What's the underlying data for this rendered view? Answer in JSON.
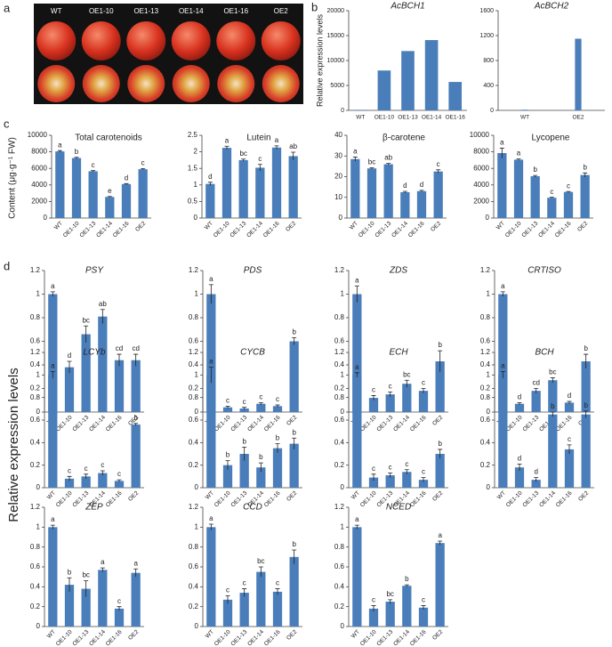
{
  "panels": [
    "a",
    "b",
    "c",
    "d"
  ],
  "photo_labels": [
    "WT",
    "OE1-10",
    "OE1-13",
    "OE1-14",
    "OE1-16",
    "OE2"
  ],
  "ylabels": {
    "b": "Relative expression levels",
    "c": "Content (μg·g⁻¹ FW)",
    "d": "Relative expression levels"
  },
  "chart_data": [
    {
      "type": "bar",
      "title": "AcBCH1",
      "categories": [
        "WT",
        "OE1-10",
        "OE1-13",
        "OE1-14",
        "OE1-16"
      ],
      "values": [
        100,
        8000,
        11900,
        14100,
        5700
      ],
      "ylim": [
        0,
        20000
      ],
      "yticks": [
        0,
        5000,
        10000,
        15000,
        20000
      ],
      "color": "#4a7ebb"
    },
    {
      "type": "bar",
      "title": "AcBCH2",
      "categories": [
        "WT",
        "OE2"
      ],
      "values": [
        10,
        1150
      ],
      "ylim": [
        0,
        1600
      ],
      "yticks": [
        0,
        400,
        800,
        1200,
        1600
      ],
      "color": "#4a7ebb"
    },
    {
      "type": "bar",
      "title": "Total carotenoids",
      "categories": [
        "WT",
        "OE1-10",
        "OE1-13",
        "OE1-14",
        "OE1-16",
        "OE2"
      ],
      "values": [
        8050,
        7250,
        5650,
        2550,
        4100,
        5900
      ],
      "errors": [
        100,
        80,
        80,
        60,
        60,
        80
      ],
      "annotations": [
        "a",
        "b",
        "c",
        "e",
        "d",
        "c"
      ],
      "ylim": [
        0,
        10000
      ],
      "yticks": [
        0,
        2000,
        4000,
        6000,
        8000,
        10000
      ],
      "color": "#4a7ebb"
    },
    {
      "type": "bar",
      "title": "Lutein",
      "categories": [
        "WT",
        "OE1-10",
        "OE1-13",
        "OE1-14",
        "OE1-16",
        "OE2"
      ],
      "values": [
        1.03,
        2.12,
        1.75,
        1.52,
        2.13,
        1.87
      ],
      "errors": [
        0.05,
        0.05,
        0.03,
        0.1,
        0.05,
        0.12
      ],
      "annotations": [
        "d",
        "a",
        "bc",
        "c",
        "a",
        "ab"
      ],
      "ylim": [
        0,
        2.5
      ],
      "yticks": [
        0,
        0.5,
        1,
        1.5,
        2,
        2.5
      ],
      "color": "#4a7ebb"
    },
    {
      "type": "bar",
      "title": "β-carotene",
      "categories": [
        "WT",
        "OE1-10",
        "OE1-13",
        "OE1-14",
        "OE1-16",
        "OE2"
      ],
      "values": [
        28.5,
        24,
        26,
        12.5,
        13,
        22.5
      ],
      "errors": [
        1,
        0.3,
        0.4,
        0.4,
        0.4,
        0.8
      ],
      "annotations": [
        "a",
        "bc",
        "ab",
        "d",
        "d",
        "c"
      ],
      "ylim": [
        0,
        40
      ],
      "yticks": [
        0,
        10,
        20,
        30,
        40
      ],
      "color": "#4a7ebb"
    },
    {
      "type": "bar",
      "title": "Lycopene",
      "categories": [
        "WT",
        "OE1-10",
        "OE1-13",
        "OE1-14",
        "OE1-16",
        "OE2"
      ],
      "values": [
        7850,
        7050,
        5050,
        2450,
        3150,
        5200
      ],
      "errors": [
        600,
        100,
        100,
        60,
        60,
        250
      ],
      "annotations": [
        "a",
        "a",
        "b",
        "c",
        "c",
        "b"
      ],
      "ylim": [
        0,
        10000
      ],
      "yticks": [
        0,
        2000,
        4000,
        6000,
        8000,
        10000
      ],
      "color": "#4a7ebb"
    },
    {
      "type": "bar",
      "title": "PSY",
      "categories": [
        "WT",
        "OE1-10",
        "OE1-13",
        "OE1-14",
        "OE1-16",
        "OE2"
      ],
      "values": [
        1,
        0.38,
        0.66,
        0.81,
        0.44,
        0.44
      ],
      "errors": [
        0.02,
        0.05,
        0.07,
        0.06,
        0.05,
        0.05
      ],
      "annotations": [
        "a",
        "d",
        "bc",
        "ab",
        "cd",
        "cd"
      ],
      "ylim": [
        0,
        1.2
      ],
      "yticks": [
        0,
        0.2,
        0.4,
        0.6,
        0.8,
        1,
        1.2
      ],
      "color": "#4a7ebb"
    },
    {
      "type": "bar",
      "title": "PDS",
      "categories": [
        "WT",
        "OE1-10",
        "OE1-13",
        "OE1-14",
        "OE1-16",
        "OE2"
      ],
      "values": [
        1,
        0.04,
        0.03,
        0.07,
        0.05,
        0.6
      ],
      "errors": [
        0.08,
        0.01,
        0.01,
        0.01,
        0.01,
        0.03
      ],
      "annotations": [
        "a",
        "c",
        "c",
        "c",
        "c",
        "b"
      ],
      "ylim": [
        0,
        1.2
      ],
      "yticks": [
        0,
        0.2,
        0.4,
        0.6,
        0.8,
        1,
        1.2
      ],
      "color": "#4a7ebb"
    },
    {
      "type": "bar",
      "title": "ZDS",
      "categories": [
        "WT",
        "OE1-10",
        "OE1-13",
        "OE1-14",
        "OE1-16",
        "OE2"
      ],
      "values": [
        1,
        0.12,
        0.15,
        0.24,
        0.18,
        0.43
      ],
      "errors": [
        0.07,
        0.02,
        0.02,
        0.03,
        0.02,
        0.09
      ],
      "annotations": [
        "a",
        "c",
        "c",
        "bc",
        "c",
        "b"
      ],
      "ylim": [
        0,
        1.2
      ],
      "yticks": [
        0,
        0.2,
        0.4,
        0.6,
        0.8,
        1,
        1.2
      ],
      "color": "#4a7ebb"
    },
    {
      "type": "bar",
      "title": "CRTISO",
      "categories": [
        "WT",
        "OE1-10",
        "OE1-13",
        "OE1-14",
        "OE1-16",
        "OE2"
      ],
      "values": [
        1,
        0.07,
        0.18,
        0.27,
        0.08,
        0.43
      ],
      "errors": [
        0.02,
        0.01,
        0.02,
        0.02,
        0.01,
        0.06
      ],
      "annotations": [
        "a",
        "d",
        "cd",
        "bc",
        "d",
        "b"
      ],
      "ylim": [
        0,
        1.2
      ],
      "yticks": [
        0,
        0.2,
        0.4,
        0.6,
        0.8,
        1,
        1.2
      ],
      "color": "#4a7ebb"
    },
    {
      "type": "bar",
      "title": "LCYb",
      "categories": [
        "WT",
        "OE1-10",
        "OE1-13",
        "OE1-14",
        "OE1-16",
        "OE2"
      ],
      "values": [
        1,
        0.08,
        0.1,
        0.13,
        0.06,
        0.56
      ],
      "errors": [
        0.03,
        0.02,
        0.02,
        0.02,
        0.01,
        0.01
      ],
      "annotations": [
        "a",
        "c",
        "c",
        "c",
        "c",
        "b"
      ],
      "ylim": [
        0,
        1.2
      ],
      "yticks": [
        0,
        0.2,
        0.4,
        0.6,
        0.8,
        1,
        1.2
      ],
      "color": "#4a7ebb"
    },
    {
      "type": "bar",
      "title": "CYCB",
      "categories": [
        "WT",
        "OE1-10",
        "OE1-13",
        "OE1-14",
        "OE1-16",
        "OE2"
      ],
      "values": [
        1,
        0.2,
        0.3,
        0.18,
        0.35,
        0.39
      ],
      "errors": [
        0.07,
        0.04,
        0.06,
        0.04,
        0.04,
        0.05
      ],
      "annotations": [
        "a",
        "b",
        "b",
        "b",
        "b",
        "b"
      ],
      "ylim": [
        0,
        1.2
      ],
      "yticks": [
        0,
        0.2,
        0.4,
        0.6,
        0.8,
        1,
        1.2
      ],
      "color": "#4a7ebb"
    },
    {
      "type": "bar",
      "title": "ECH",
      "categories": [
        "WT",
        "OE1-10",
        "OE1-13",
        "OE1-14",
        "OE1-16",
        "OE2"
      ],
      "values": [
        1,
        0.09,
        0.11,
        0.14,
        0.07,
        0.3
      ],
      "errors": [
        0.02,
        0.03,
        0.02,
        0.02,
        0.02,
        0.04
      ],
      "annotations": [
        "a",
        "c",
        "c",
        "c",
        "c",
        "b"
      ],
      "ylim": [
        0,
        1.2
      ],
      "yticks": [
        0,
        0.2,
        0.4,
        0.6,
        0.8,
        1,
        1.2
      ],
      "color": "#4a7ebb"
    },
    {
      "type": "bar",
      "title": "BCH",
      "categories": [
        "WT",
        "OE1-10",
        "OE1-13",
        "OE1-14",
        "OE1-16",
        "OE2"
      ],
      "values": [
        1,
        0.18,
        0.07,
        0.65,
        0.34,
        0.65
      ],
      "errors": [
        0.03,
        0.03,
        0.02,
        0.02,
        0.04,
        0.03
      ],
      "annotations": [
        "a",
        "d",
        "d",
        "b",
        "c",
        "b"
      ],
      "ylim": [
        0,
        1.2
      ],
      "yticks": [
        0,
        0.2,
        0.4,
        0.6,
        0.8,
        1,
        1.2
      ],
      "color": "#4a7ebb"
    },
    {
      "type": "bar",
      "title": "ZEP",
      "categories": [
        "WT",
        "OE1-10",
        "OE1-13",
        "OE1-14",
        "OE1-16",
        "OE2"
      ],
      "values": [
        1,
        0.42,
        0.38,
        0.57,
        0.18,
        0.54
      ],
      "errors": [
        0.02,
        0.07,
        0.08,
        0.02,
        0.02,
        0.04
      ],
      "annotations": [
        "a",
        "b",
        "bc",
        "a",
        "c",
        "a"
      ],
      "ylim": [
        0,
        1.2
      ],
      "yticks": [
        0,
        0.2,
        0.4,
        0.6,
        0.8,
        1,
        1.2
      ],
      "color": "#4a7ebb"
    },
    {
      "type": "bar",
      "title": "CCD",
      "categories": [
        "WT",
        "OE1-10",
        "OE1-13",
        "OE1-14",
        "OE1-16",
        "OE2"
      ],
      "values": [
        1,
        0.27,
        0.34,
        0.55,
        0.35,
        0.7
      ],
      "errors": [
        0.03,
        0.04,
        0.04,
        0.05,
        0.03,
        0.07
      ],
      "annotations": [
        "a",
        "c",
        "c",
        "bc",
        "c",
        "b"
      ],
      "ylim": [
        0,
        1.2
      ],
      "yticks": [
        0,
        0.2,
        0.4,
        0.6,
        0.8,
        1,
        1.2
      ],
      "color": "#4a7ebb"
    },
    {
      "type": "bar",
      "title": "NCED",
      "categories": [
        "WT",
        "OE1-10",
        "OE1-13",
        "OE1-14",
        "OE1-16",
        "OE2"
      ],
      "values": [
        1,
        0.18,
        0.25,
        0.41,
        0.19,
        0.84
      ],
      "errors": [
        0.02,
        0.03,
        0.02,
        0.01,
        0.02,
        0.02
      ],
      "annotations": [
        "a",
        "c",
        "bc",
        "b",
        "c",
        "a"
      ],
      "ylim": [
        0,
        1.2
      ],
      "yticks": [
        0,
        0.2,
        0.4,
        0.6,
        0.8,
        1,
        1.2
      ],
      "color": "#4a7ebb"
    }
  ]
}
